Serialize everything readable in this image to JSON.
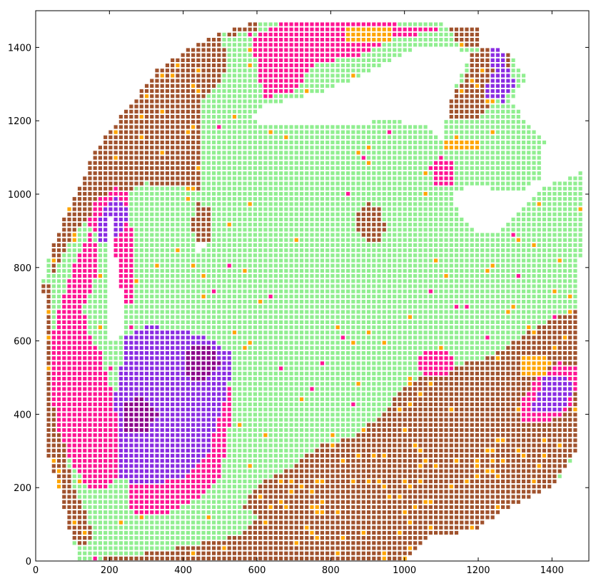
{
  "chart_data": {
    "type": "heatmap",
    "subtype": "spatial spot map (categorical)",
    "title": "",
    "xlabel": "",
    "ylabel": "",
    "xlim": [
      0,
      1500
    ],
    "ylim": [
      1500,
      0
    ],
    "y_inverted": true,
    "x_ticks": [
      "0",
      "200",
      "400",
      "600",
      "800",
      "1000",
      "1200",
      "1400"
    ],
    "y_ticks": [
      "0",
      "200",
      "400",
      "600",
      "800",
      "1000",
      "1200",
      "1400"
    ],
    "grid": false,
    "legend": "none",
    "spot_spacing": 14,
    "categories": [
      {
        "id": "light-green",
        "color": "#90ee90"
      },
      {
        "id": "brown",
        "color": "#a0522d"
      },
      {
        "id": "pink",
        "color": "#ff1493"
      },
      {
        "id": "purple",
        "color": "#8a2be2"
      },
      {
        "id": "dark-purple",
        "color": "#8b008b"
      },
      {
        "id": "orange",
        "color": "#ffa500"
      }
    ],
    "tissue_outline": [
      [
        120,
        0
      ],
      [
        560,
        0
      ],
      [
        1000,
        0
      ],
      [
        1040,
        40
      ],
      [
        1080,
        70
      ],
      [
        1180,
        80
      ],
      [
        1290,
        150
      ],
      [
        1400,
        200
      ],
      [
        1470,
        300
      ],
      [
        1480,
        1060
      ],
      [
        1380,
        1020
      ],
      [
        1330,
        980
      ],
      [
        1260,
        900
      ],
      [
        1200,
        890
      ],
      [
        1150,
        940
      ],
      [
        1130,
        1010
      ],
      [
        1200,
        1020
      ],
      [
        1300,
        1000
      ],
      [
        1370,
        1040
      ],
      [
        1380,
        1150
      ],
      [
        1340,
        1190
      ],
      [
        1290,
        1250
      ],
      [
        1330,
        1320
      ],
      [
        1280,
        1390
      ],
      [
        1210,
        1400
      ],
      [
        1200,
        1460
      ],
      [
        900,
        1470
      ],
      [
        600,
        1470
      ],
      [
        500,
        1440
      ],
      [
        420,
        1400
      ],
      [
        330,
        1340
      ],
      [
        270,
        1260
      ],
      [
        220,
        1200
      ],
      [
        160,
        1120
      ],
      [
        120,
        1020
      ],
      [
        80,
        940
      ],
      [
        40,
        840
      ],
      [
        20,
        760
      ],
      [
        30,
        460
      ],
      [
        30,
        300
      ],
      [
        70,
        180
      ],
      [
        90,
        80
      ]
    ],
    "regions": [
      {
        "category": "brown",
        "polygon": [
          [
            120,
            0
          ],
          [
            1000,
            0
          ],
          [
            1080,
            70
          ],
          [
            1190,
            80
          ],
          [
            1300,
            150
          ],
          [
            1400,
            200
          ],
          [
            1480,
            320
          ],
          [
            1480,
            700
          ],
          [
            1330,
            620
          ],
          [
            1240,
            560
          ],
          [
            1100,
            520
          ],
          [
            1000,
            480
          ],
          [
            940,
            400
          ],
          [
            860,
            340
          ],
          [
            760,
            310
          ],
          [
            700,
            260
          ],
          [
            600,
            210
          ],
          [
            560,
            150
          ],
          [
            600,
            120
          ],
          [
            560,
            70
          ],
          [
            360,
            30
          ]
        ]
      },
      {
        "category": "light-green",
        "polygon": [
          [
            420,
            80
          ],
          [
            560,
            70
          ],
          [
            610,
            120
          ],
          [
            560,
            150
          ],
          [
            600,
            210
          ],
          [
            520,
            220
          ],
          [
            480,
            160
          ],
          [
            430,
            140
          ]
        ]
      },
      {
        "category": "brown",
        "polygon": [
          [
            30,
            300
          ],
          [
            70,
            180
          ],
          [
            90,
            80
          ],
          [
            120,
            40
          ],
          [
            160,
            60
          ],
          [
            140,
            120
          ],
          [
            100,
            200
          ],
          [
            80,
            300
          ],
          [
            60,
            420
          ],
          [
            40,
            560
          ],
          [
            40,
            760
          ],
          [
            20,
            760
          ]
        ]
      },
      {
        "category": "brown",
        "polygon": [
          [
            40,
            760
          ],
          [
            100,
            880
          ],
          [
            160,
            960
          ],
          [
            220,
            1000
          ],
          [
            300,
            1030
          ],
          [
            400,
            1020
          ],
          [
            450,
            1000
          ],
          [
            450,
            1260
          ],
          [
            500,
            1300
          ],
          [
            520,
            1360
          ],
          [
            500,
            1440
          ],
          [
            420,
            1400
          ],
          [
            330,
            1340
          ],
          [
            270,
            1260
          ],
          [
            220,
            1200
          ],
          [
            160,
            1120
          ],
          [
            120,
            1020
          ],
          [
            80,
            940
          ],
          [
            40,
            840
          ]
        ]
      },
      {
        "category": "brown",
        "polygon": [
          [
            440,
            840
          ],
          [
            480,
            880
          ],
          [
            480,
            960
          ],
          [
            440,
            980
          ],
          [
            420,
            920
          ]
        ]
      },
      {
        "category": "brown",
        "polygon": [
          [
            880,
            880
          ],
          [
            920,
            860
          ],
          [
            950,
            900
          ],
          [
            940,
            960
          ],
          [
            900,
            980
          ],
          [
            860,
            940
          ]
        ]
      },
      {
        "category": "brown",
        "polygon": [
          [
            1100,
            1200
          ],
          [
            1200,
            1210
          ],
          [
            1260,
            1260
          ],
          [
            1290,
            1320
          ],
          [
            1280,
            1390
          ],
          [
            1220,
            1400
          ],
          [
            1180,
            1380
          ],
          [
            1160,
            1300
          ],
          [
            1110,
            1260
          ]
        ]
      },
      {
        "category": "brown",
        "polygon": [
          [
            520,
            1430
          ],
          [
            600,
            1450
          ],
          [
            600,
            1470
          ],
          [
            500,
            1460
          ]
        ]
      },
      {
        "category": "brown",
        "polygon": [
          [
            1150,
            1400
          ],
          [
            1200,
            1400
          ],
          [
            1200,
            1460
          ],
          [
            1120,
            1460
          ]
        ]
      },
      {
        "category": "pink",
        "polygon": [
          [
            40,
            480
          ],
          [
            60,
            360
          ],
          [
            100,
            260
          ],
          [
            140,
            200
          ],
          [
            200,
            200
          ],
          [
            260,
            260
          ],
          [
            240,
            380
          ],
          [
            200,
            480
          ],
          [
            180,
            560
          ],
          [
            140,
            620
          ],
          [
            130,
            700
          ],
          [
            160,
            760
          ],
          [
            170,
            840
          ],
          [
            150,
            900
          ],
          [
            110,
            820
          ],
          [
            80,
            740
          ],
          [
            50,
            640
          ]
        ]
      },
      {
        "category": "pink",
        "polygon": [
          [
            260,
            120
          ],
          [
            360,
            130
          ],
          [
            440,
            170
          ],
          [
            500,
            230
          ],
          [
            520,
            320
          ],
          [
            530,
            420
          ],
          [
            520,
            520
          ],
          [
            480,
            560
          ],
          [
            430,
            500
          ],
          [
            440,
            400
          ],
          [
            400,
            300
          ],
          [
            320,
            250
          ],
          [
            250,
            260
          ]
        ]
      },
      {
        "category": "purple",
        "polygon": [
          [
            230,
            220
          ],
          [
            320,
            210
          ],
          [
            410,
            230
          ],
          [
            470,
            290
          ],
          [
            490,
            380
          ],
          [
            520,
            460
          ],
          [
            540,
            560
          ],
          [
            480,
            600
          ],
          [
            400,
            630
          ],
          [
            300,
            640
          ],
          [
            240,
            610
          ],
          [
            230,
            520
          ],
          [
            210,
            440
          ],
          [
            230,
            360
          ]
        ]
      },
      {
        "category": "dark-purple",
        "polygon": [
          [
            240,
            350
          ],
          [
            300,
            350
          ],
          [
            330,
            400
          ],
          [
            290,
            450
          ],
          [
            240,
            430
          ]
        ]
      },
      {
        "category": "dark-purple",
        "polygon": [
          [
            400,
            500
          ],
          [
            460,
            490
          ],
          [
            500,
            540
          ],
          [
            470,
            590
          ],
          [
            410,
            580
          ]
        ]
      },
      {
        "category": "pink",
        "polygon": [
          [
            230,
            700
          ],
          [
            260,
            700
          ],
          [
            260,
            900
          ],
          [
            250,
            1000
          ],
          [
            220,
            1020
          ],
          [
            160,
            980
          ],
          [
            140,
            920
          ],
          [
            180,
            880
          ],
          [
            220,
            820
          ]
        ]
      },
      {
        "category": "purple",
        "polygon": [
          [
            160,
            880
          ],
          [
            200,
            860
          ],
          [
            240,
            900
          ],
          [
            250,
            960
          ],
          [
            220,
            990
          ],
          [
            180,
            960
          ]
        ]
      },
      {
        "category": "pink",
        "polygon": [
          [
            1320,
            380
          ],
          [
            1400,
            380
          ],
          [
            1460,
            430
          ],
          [
            1470,
            530
          ],
          [
            1420,
            540
          ],
          [
            1360,
            500
          ],
          [
            1320,
            440
          ]
        ]
      },
      {
        "category": "purple",
        "polygon": [
          [
            1340,
            400
          ],
          [
            1420,
            400
          ],
          [
            1460,
            460
          ],
          [
            1440,
            510
          ],
          [
            1380,
            500
          ]
        ]
      },
      {
        "category": "pink",
        "polygon": [
          [
            1050,
            500
          ],
          [
            1110,
            500
          ],
          [
            1140,
            540
          ],
          [
            1110,
            580
          ],
          [
            1060,
            580
          ],
          [
            1030,
            540
          ]
        ]
      },
      {
        "category": "pink",
        "polygon": [
          [
            620,
            1260
          ],
          [
            700,
            1280
          ],
          [
            760,
            1360
          ],
          [
            860,
            1370
          ],
          [
            940,
            1410
          ],
          [
            1000,
            1430
          ],
          [
            1080,
            1440
          ],
          [
            1100,
            1460
          ],
          [
            700,
            1470
          ],
          [
            640,
            1460
          ],
          [
            590,
            1420
          ],
          [
            600,
            1330
          ]
        ]
      },
      {
        "category": "pink",
        "polygon": [
          [
            1080,
            1020
          ],
          [
            1140,
            1020
          ],
          [
            1140,
            1080
          ],
          [
            1100,
            1100
          ],
          [
            1070,
            1070
          ]
        ]
      },
      {
        "category": "purple",
        "polygon": [
          [
            1220,
            1260
          ],
          [
            1270,
            1250
          ],
          [
            1300,
            1300
          ],
          [
            1280,
            1350
          ],
          [
            1230,
            1330
          ]
        ]
      },
      {
        "category": "purple",
        "polygon": [
          [
            1230,
            1350
          ],
          [
            1270,
            1350
          ],
          [
            1270,
            1440
          ],
          [
            1230,
            1440
          ]
        ]
      },
      {
        "category": "orange",
        "polygon": [
          [
            1100,
            1120
          ],
          [
            1200,
            1120
          ],
          [
            1200,
            1150
          ],
          [
            1100,
            1150
          ]
        ]
      },
      {
        "category": "orange",
        "polygon": [
          [
            1320,
            500
          ],
          [
            1380,
            500
          ],
          [
            1380,
            560
          ],
          [
            1320,
            560
          ]
        ]
      },
      {
        "category": "orange",
        "polygon": [
          [
            840,
            1420
          ],
          [
            960,
            1420
          ],
          [
            960,
            1460
          ],
          [
            840,
            1460
          ]
        ]
      }
    ],
    "holes": [
      [
        [
          200,
          600
        ],
        [
          230,
          600
        ],
        [
          240,
          700
        ],
        [
          220,
          800
        ],
        [
          210,
          880
        ],
        [
          200,
          960
        ],
        [
          190,
          940
        ],
        [
          200,
          800
        ],
        [
          190,
          700
        ],
        [
          200,
          650
        ]
      ],
      [
        [
          440,
          840
        ],
        [
          450,
          840
        ],
        [
          460,
          860
        ],
        [
          440,
          870
        ]
      ],
      [
        [
          580,
          1200
        ],
        [
          640,
          1190
        ],
        [
          800,
          1190
        ],
        [
          960,
          1200
        ],
        [
          1060,
          1190
        ],
        [
          1100,
          1150
        ],
        [
          1120,
          1240
        ],
        [
          1140,
          1300
        ],
        [
          1180,
          1380
        ],
        [
          1140,
          1400
        ],
        [
          1040,
          1400
        ],
        [
          980,
          1370
        ],
        [
          900,
          1330
        ],
        [
          780,
          1280
        ],
        [
          700,
          1260
        ],
        [
          620,
          1240
        ]
      ]
    ]
  }
}
